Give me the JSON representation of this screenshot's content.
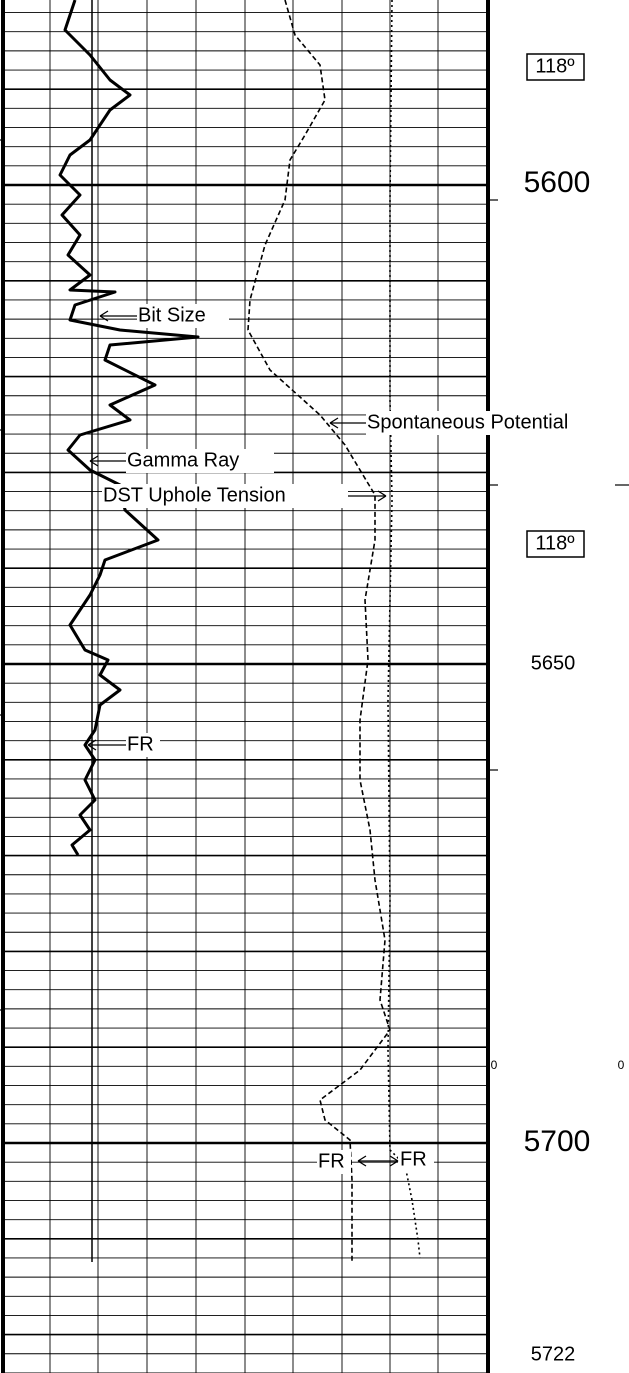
{
  "header_labels": {
    "temp_top": "118º",
    "temp_mid": "118º"
  },
  "depths": {
    "d1": "5600",
    "d2": "5650",
    "d3": "5700",
    "d4": "5722"
  },
  "scale_zeros": {
    "left": "0",
    "right": "0"
  },
  "curve_labels": {
    "bit_size": "Bit Size",
    "gamma_ray": "Gamma Ray",
    "sp": "Spontaneous Potential",
    "tension": "DST Uphole Tension",
    "fr1": "FR",
    "fr2": "FR",
    "fr3": "FR"
  }
}
